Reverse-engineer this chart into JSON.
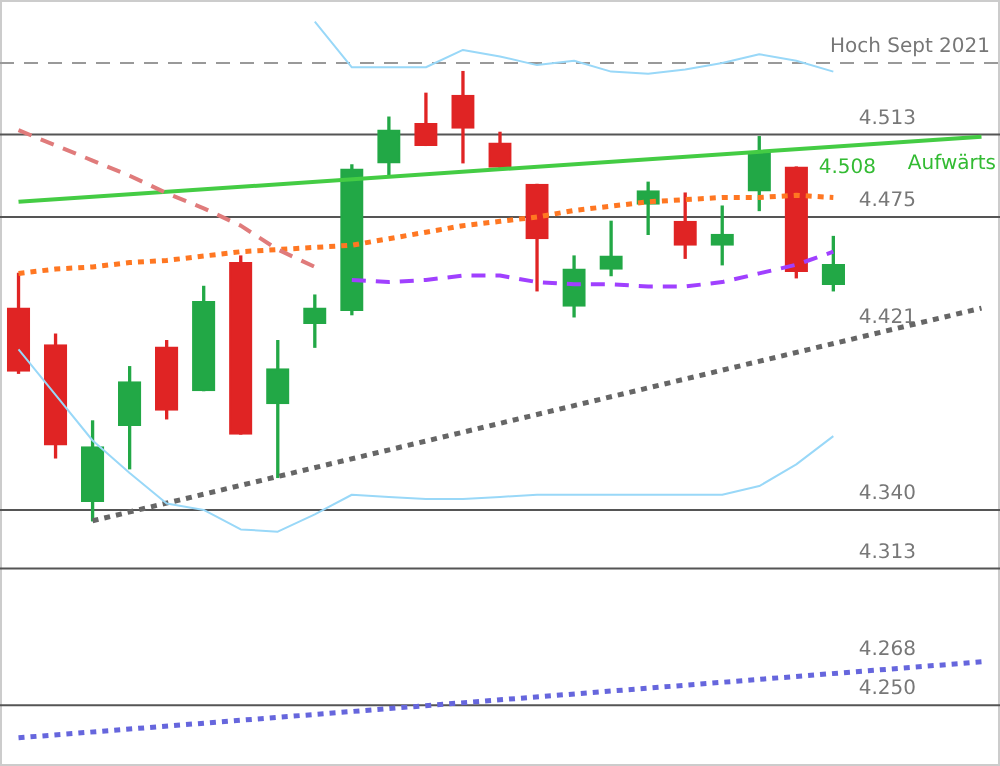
{
  "chart_data": {
    "type": "candlestick",
    "categories": [
      null,
      null,
      null,
      null,
      null,
      null,
      null,
      null,
      null,
      null,
      null,
      null,
      null,
      null,
      null,
      null,
      null,
      null,
      null,
      null,
      null,
      null,
      null,
      null,
      null,
      null,
      null
    ],
    "ohlc": [
      [
        4.433,
        4.449,
        4.403,
        4.404
      ],
      [
        4.416,
        4.421,
        4.364,
        4.37
      ],
      [
        4.344,
        4.381,
        4.335,
        4.369
      ],
      [
        4.379,
        4.406,
        4.359,
        4.399
      ],
      [
        4.415,
        4.418,
        4.382,
        4.386
      ],
      [
        4.395,
        4.443,
        4.395,
        4.436
      ],
      [
        4.454,
        4.457,
        4.375,
        4.375
      ],
      [
        4.389,
        4.418,
        4.355,
        4.405
      ],
      [
        4.426,
        4.439,
        4.415,
        4.433
      ],
      [
        4.432,
        4.499,
        4.43,
        4.497
      ],
      [
        4.5,
        4.521,
        4.494,
        4.515
      ],
      [
        4.518,
        4.532,
        4.508,
        4.508
      ],
      [
        4.531,
        4.542,
        4.5,
        4.516
      ],
      [
        4.509,
        4.514,
        4.498,
        4.498
      ],
      [
        4.49,
        4.49,
        4.441,
        4.465
      ],
      [
        4.434,
        4.457,
        4.429,
        4.451
      ],
      [
        4.451,
        4.473,
        4.448,
        4.457
      ],
      [
        4.481,
        4.491,
        4.467,
        4.487
      ],
      [
        4.473,
        4.486,
        4.456,
        4.462
      ],
      [
        4.462,
        4.48,
        4.453,
        4.467
      ],
      [
        4.487,
        4.512,
        4.478,
        4.505
      ],
      [
        4.498,
        4.498,
        4.447,
        4.45
      ],
      [
        4.444,
        4.466,
        4.441,
        4.453
      ],
      null,
      null,
      null,
      null
    ],
    "colors": [
      "#e02424",
      "#e02424",
      "#22a846",
      "#22a846",
      "#e02424",
      "#22a846",
      "#e02424",
      "#22a846",
      "#22a846",
      "#22a846",
      "#22a846",
      "#e02424",
      "#e02424",
      "#e02424",
      "#e02424",
      "#22a846",
      "#22a846",
      "#22a846",
      "#e02424",
      "#22a846",
      "#22a846",
      "#e02424",
      "#22a846",
      null,
      null,
      null,
      null
    ],
    "series": [
      {
        "type": "line",
        "color": "#e07b7b",
        "line_style": "dashed",
        "values": [
          4.515,
          4.508,
          4.501,
          4.494,
          4.486,
          4.479,
          4.471,
          4.46,
          4.452,
          null,
          null,
          null,
          null,
          null,
          null,
          null,
          null,
          null,
          null,
          null,
          null,
          null,
          null,
          null,
          null,
          null,
          null
        ]
      },
      {
        "type": "line",
        "color": "#99d8f8",
        "line_style": "solid",
        "values": [
          4.414,
          4.393,
          4.372,
          4.357,
          4.343,
          4.34,
          4.331,
          4.33,
          4.338,
          4.347,
          4.346,
          4.345,
          4.345,
          4.346,
          4.347,
          4.347,
          4.347,
          4.347,
          4.347,
          4.347,
          4.351,
          4.361,
          4.374,
          null,
          null,
          null,
          null
        ]
      },
      {
        "type": "line",
        "color": "#99d8f8",
        "line_style": "solid",
        "values": [
          null,
          null,
          null,
          null,
          null,
          null,
          null,
          null,
          4.565,
          4.544,
          4.544,
          4.544,
          4.552,
          4.549,
          4.545,
          4.547,
          4.542,
          4.541,
          4.543,
          4.546,
          4.55,
          4.547,
          4.542,
          null,
          null,
          null,
          null
        ]
      },
      {
        "type": "line",
        "color": "#a040ff",
        "line_style": "dashed",
        "values": [
          null,
          null,
          null,
          null,
          null,
          null,
          null,
          null,
          null,
          4.446,
          4.445,
          4.446,
          4.448,
          4.448,
          4.445,
          4.444,
          4.444,
          4.443,
          4.443,
          4.445,
          4.449,
          4.453,
          4.459,
          null,
          null,
          null,
          null
        ]
      },
      {
        "type": "line",
        "color": "#ff7722",
        "line_style": "dotted",
        "values": [
          4.449,
          4.451,
          4.452,
          4.454,
          4.455,
          4.457,
          4.459,
          4.46,
          4.461,
          4.462,
          4.465,
          4.468,
          4.471,
          4.473,
          4.475,
          4.478,
          4.48,
          4.482,
          4.483,
          4.484,
          4.484,
          4.485,
          4.484,
          null,
          null,
          null,
          null
        ]
      },
      {
        "type": "line",
        "color": "#44cc44",
        "line_style": "solid",
        "values": [
          4.482,
          null,
          null,
          null,
          null,
          null,
          null,
          null,
          null,
          null,
          null,
          null,
          null,
          null,
          null,
          null,
          null,
          null,
          null,
          null,
          null,
          null,
          null,
          null,
          null,
          null,
          4.512
        ]
      },
      {
        "type": "line",
        "color": "#666666",
        "line_style": "dotted",
        "values": [
          null,
          null,
          4.335,
          null,
          null,
          null,
          null,
          null,
          null,
          null,
          null,
          null,
          null,
          null,
          null,
          null,
          null,
          null,
          null,
          null,
          null,
          null,
          null,
          null,
          null,
          null,
          4.433
        ]
      },
      {
        "type": "line",
        "color": "#6666dd",
        "line_style": "dotted",
        "values": [
          4.235,
          null,
          null,
          null,
          null,
          null,
          null,
          null,
          null,
          null,
          null,
          null,
          null,
          null,
          null,
          null,
          null,
          null,
          null,
          null,
          null,
          null,
          null,
          null,
          null,
          null,
          4.27
        ]
      }
    ],
    "ylim": [
      4.222,
      4.575
    ],
    "tick_labels": false,
    "ref_lines": [
      {
        "axis": "y",
        "value": 4.546,
        "label": "Hoch Sept 2021",
        "color": "#999999",
        "line_style": "dashed"
      },
      {
        "axis": "y",
        "value": 4.513,
        "label": "4.513",
        "color": "#555555"
      },
      {
        "axis": "y",
        "value": 4.475,
        "label": "4.475",
        "color": "#555555"
      },
      {
        "axis": "y",
        "value": 4.34,
        "label": "4.340",
        "color": "#555555"
      },
      {
        "axis": "y",
        "value": 4.313,
        "label": "4.313",
        "color": "#555555"
      },
      {
        "axis": "y",
        "value": 4.25,
        "label": "4.250",
        "color": "#555555"
      }
    ],
    "annotations": [
      {
        "text": "Aufwärts",
        "y": 4.508
      },
      {
        "text": "4.508",
        "y": 4.508
      },
      {
        "text": "4.421",
        "y": 4.421
      },
      {
        "text": "4.268",
        "y": 4.268
      }
    ]
  }
}
